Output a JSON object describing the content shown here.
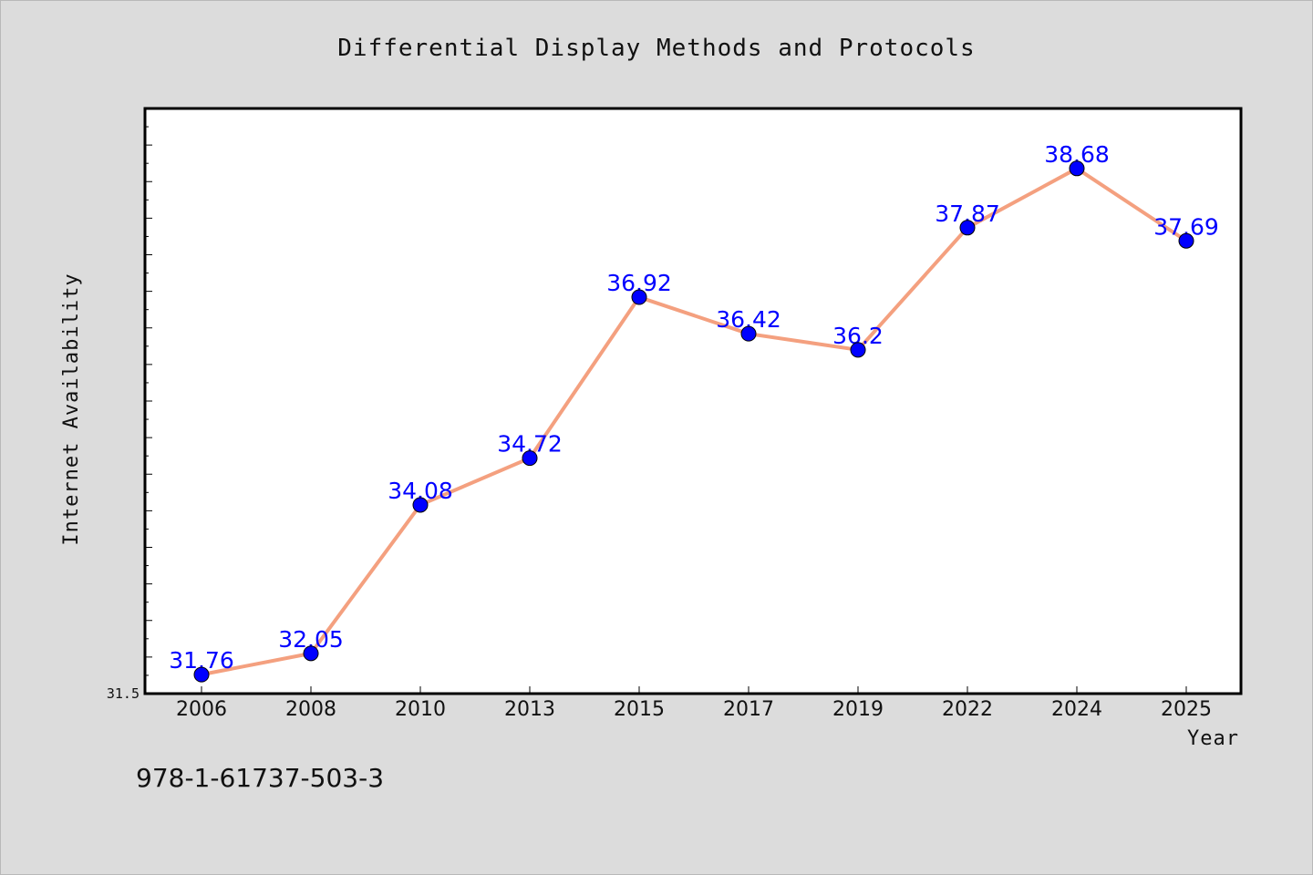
{
  "chart_data": {
    "type": "line",
    "title": "Differential Display Methods and Protocols",
    "xlabel": "Year",
    "ylabel": "Internet Availability",
    "categories": [
      "2006",
      "2008",
      "2010",
      "2013",
      "2015",
      "2017",
      "2019",
      "2022",
      "2024",
      "2025"
    ],
    "values": [
      31.76,
      32.05,
      34.08,
      34.72,
      36.92,
      36.42,
      36.2,
      37.87,
      38.68,
      37.69
    ],
    "data_labels": [
      "31.76",
      "32.05",
      "34.08",
      "34.72",
      "36.92",
      "36.42",
      "36.2",
      "37.87",
      "38.68",
      "37.69"
    ],
    "yticks": [
      "31.5"
    ],
    "ylim": [
      31.5,
      39.5
    ],
    "grid": false,
    "line_color": "#f4a07f",
    "marker_color": "#0000ff",
    "label_color": "#0000ff"
  },
  "annotation": "978-1-61737-503-3"
}
